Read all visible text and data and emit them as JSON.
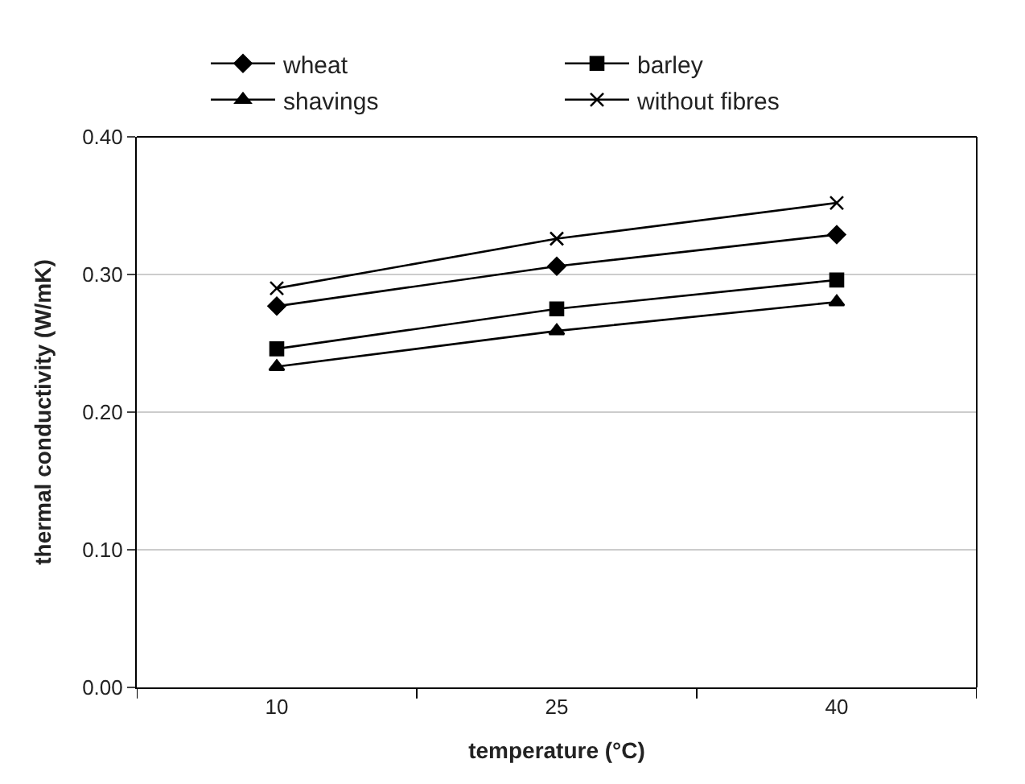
{
  "chart_data": {
    "type": "line",
    "xlabel": "temperature (°C)",
    "ylabel": "thermal conductivity (W/mK)",
    "categories": [
      "10",
      "25",
      "40"
    ],
    "series": [
      {
        "name": "wheat",
        "color": "#000000",
        "marker": "diamond",
        "values": [
          0.277,
          0.306,
          0.329
        ]
      },
      {
        "name": "barley",
        "color": "#000000",
        "marker": "square",
        "values": [
          0.246,
          0.275,
          0.296
        ]
      },
      {
        "name": "shavings",
        "color": "#000000",
        "marker": "triangle",
        "values": [
          0.233,
          0.259,
          0.28
        ]
      },
      {
        "name": "without fibres",
        "color": "#000000",
        "marker": "cross",
        "values": [
          0.29,
          0.326,
          0.352
        ]
      }
    ],
    "ylim": [
      0,
      0.4
    ],
    "yticks": [
      {
        "value": 0,
        "label": "0.00"
      },
      {
        "value": 0.1,
        "label": "0.10"
      },
      {
        "value": 0.2,
        "label": "0.20"
      },
      {
        "value": 0.3,
        "label": "0.30"
      },
      {
        "value": 0.4,
        "label": "0.40"
      }
    ],
    "grid": "y",
    "legend": "top",
    "line_style": "solid"
  }
}
